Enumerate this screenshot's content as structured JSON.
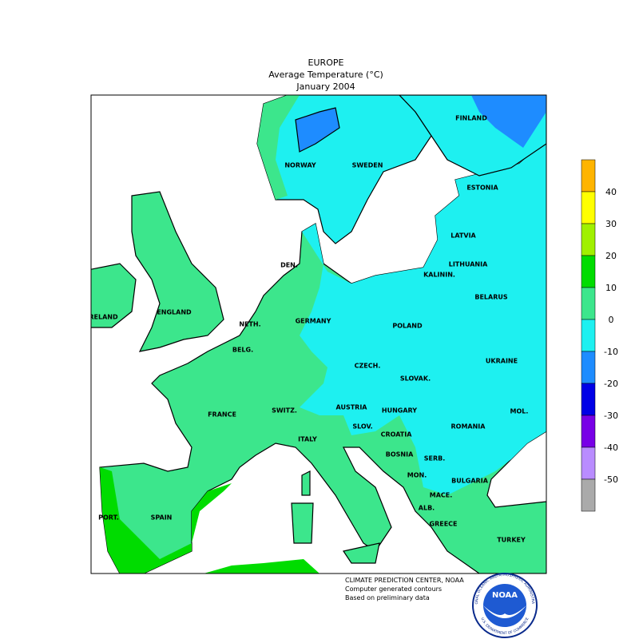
{
  "header": {
    "title": "EUROPE",
    "subtitle": "Average Temperature (°C)",
    "date": "January 2004"
  },
  "map": {
    "labels": [
      "NORWAY",
      "SWEDEN",
      "FINLAND",
      "ESTONIA",
      "LATVIA",
      "LITHUANIA",
      "KALININ.",
      "BELARUS",
      "DEN.",
      "ENGLAND",
      "IRELAND",
      "NETH.",
      "BELG.",
      "GERMANY",
      "POLAND",
      "UKRAINE",
      "CZECH.",
      "SLOVAK.",
      "FRANCE",
      "SWITZ.",
      "AUSTRIA",
      "HUNGARY",
      "MOL.",
      "ROMANIA",
      "SLOV.",
      "CROATIA",
      "BOSNIA",
      "SERB.",
      "MON.",
      "MACE.",
      "ALB.",
      "BULGARIA",
      "ITALY",
      "SPAIN",
      "PORT.",
      "GREECE",
      "TURKEY"
    ]
  },
  "colorbar": {
    "labels": [
      40,
      30,
      20,
      10,
      0,
      -10,
      -20,
      -30,
      -40,
      -50
    ],
    "colors": [
      "#ffb400",
      "#ffff00",
      "#a0f000",
      "#00dc00",
      "#3ce68c",
      "#1ef0f0",
      "#1e8cff",
      "#0000e6",
      "#7800e6",
      "#b98cff",
      "#aaaaaa"
    ]
  },
  "footer": {
    "lines": [
      "CLIMATE PREDICTION CENTER, NOAA",
      "Computer generated contours",
      "Based on preliminary data"
    ]
  },
  "logo": {
    "text": "NOAA",
    "ring_top": "NATIONAL OCEANIC AND ATMOSPHERIC ADMINISTRATION",
    "ring_bottom": "U.S. DEPARTMENT OF COMMERCE"
  }
}
